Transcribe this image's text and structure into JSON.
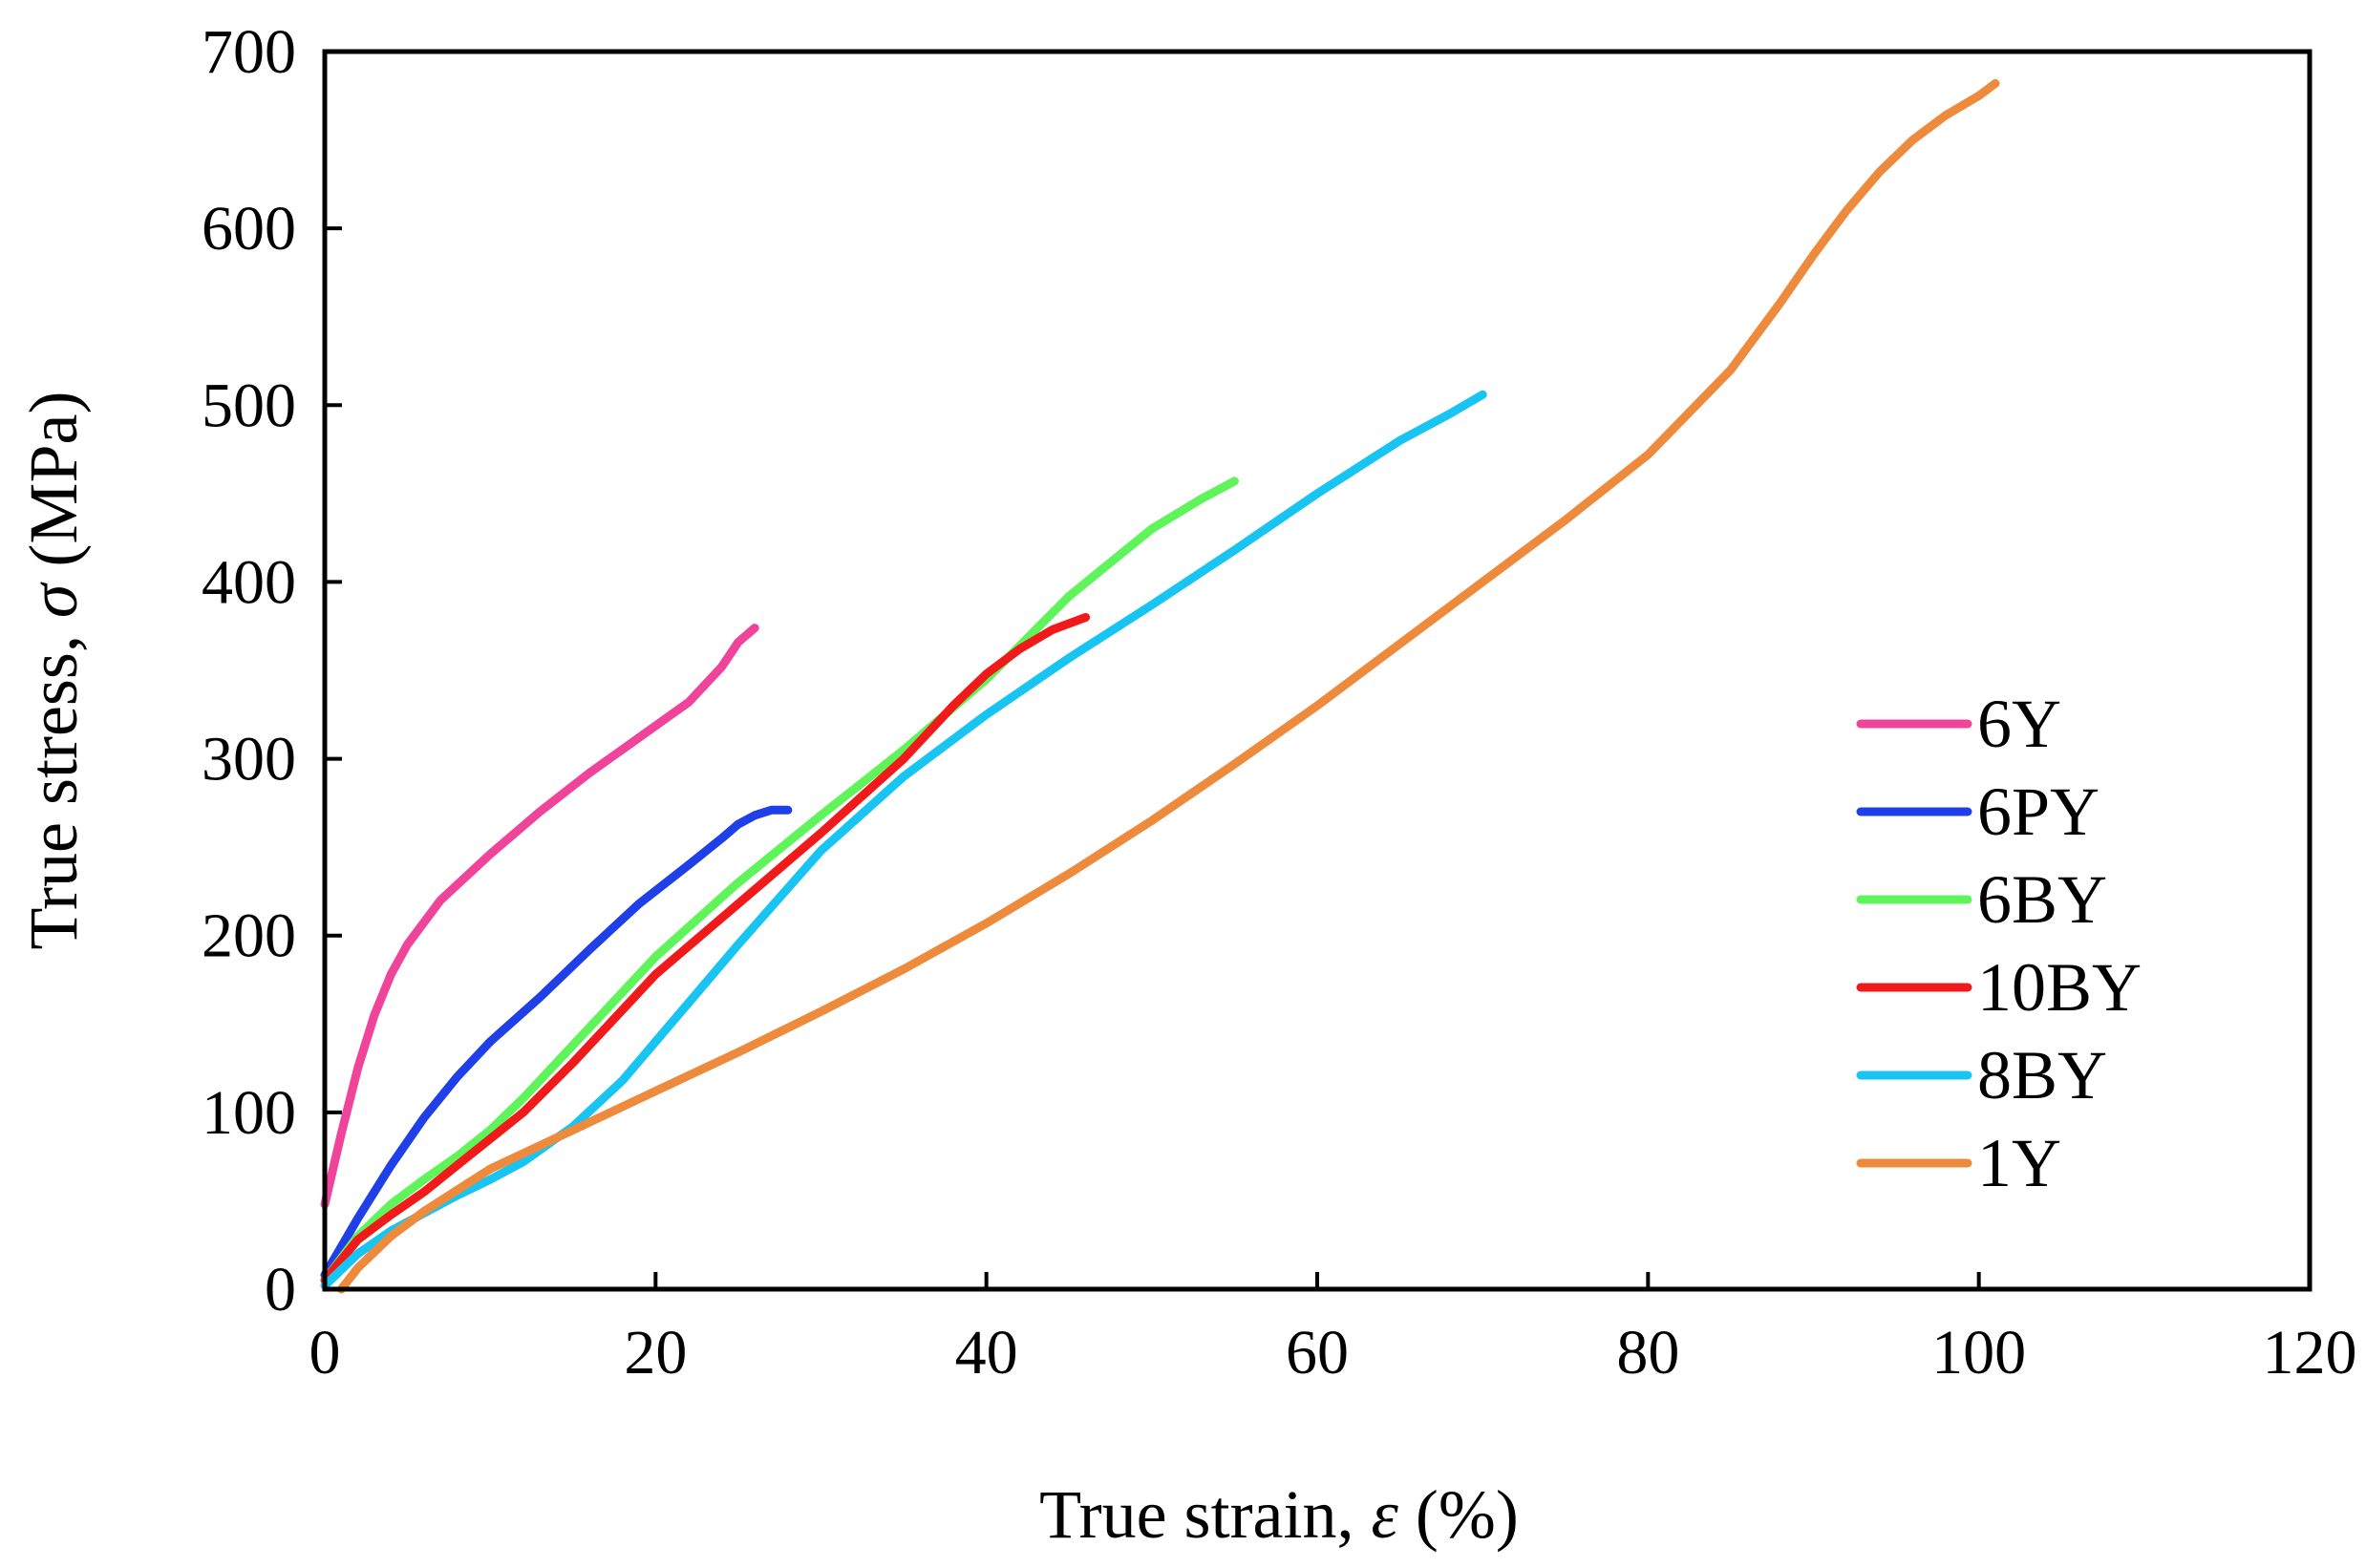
{
  "chart_data": {
    "type": "line",
    "title": "",
    "xlabel": {
      "prefix": "True strain, ",
      "symbol": "ε",
      "suffix": " (%)"
    },
    "ylabel": {
      "prefix": "True stress, ",
      "symbol": "σ",
      "suffix": " (MPa)"
    },
    "xlim": [
      0,
      120
    ],
    "ylim": [
      0,
      700
    ],
    "xticks": [
      0,
      20,
      40,
      60,
      80,
      100,
      120
    ],
    "yticks": [
      0,
      100,
      200,
      300,
      400,
      500,
      600,
      700
    ],
    "grid": false,
    "legend_position": "right",
    "series": [
      {
        "name": "6Y",
        "color": "#f0449b",
        "x": [
          0,
          1,
          2,
          3,
          4,
          5,
          7,
          10,
          13,
          16,
          19,
          22,
          24,
          25,
          26
        ],
        "y": [
          48,
          88,
          125,
          155,
          178,
          195,
          220,
          246,
          270,
          292,
          312,
          332,
          352,
          366,
          374
        ]
      },
      {
        "name": "6PY",
        "color": "#1f3fe8",
        "x": [
          0,
          2,
          4,
          6,
          8,
          10,
          13,
          16,
          19,
          22,
          24,
          25,
          26,
          27,
          28
        ],
        "y": [
          8,
          40,
          70,
          97,
          120,
          140,
          165,
          192,
          218,
          240,
          255,
          263,
          268,
          271,
          271
        ]
      },
      {
        "name": "6BY",
        "color": "#5ff55a",
        "x": [
          0,
          2,
          4,
          6,
          8,
          10,
          12,
          15,
          18,
          20,
          25,
          30,
          35,
          40,
          45,
          50,
          53,
          55
        ],
        "y": [
          5,
          30,
          48,
          62,
          75,
          90,
          108,
          138,
          168,
          188,
          230,
          268,
          305,
          345,
          392,
          430,
          447,
          457
        ]
      },
      {
        "name": "10BY",
        "color": "#f01a1a",
        "x": [
          0,
          2,
          4,
          6,
          8,
          10,
          12,
          15,
          18,
          20,
          25,
          30,
          35,
          38,
          40,
          42,
          44,
          46
        ],
        "y": [
          5,
          28,
          42,
          55,
          70,
          85,
          100,
          128,
          158,
          178,
          218,
          258,
          300,
          330,
          348,
          362,
          373,
          380
        ]
      },
      {
        "name": "8BY",
        "color": "#18c4f2",
        "x": [
          0,
          2,
          4,
          6,
          8,
          10,
          12,
          15,
          18,
          20,
          25,
          30,
          35,
          40,
          45,
          50,
          55,
          60,
          65,
          68,
          70
        ],
        "y": [
          2,
          20,
          33,
          43,
          53,
          62,
          72,
          92,
          118,
          140,
          195,
          248,
          290,
          325,
          357,
          387,
          418,
          450,
          480,
          495,
          506
        ]
      },
      {
        "name": "1Y",
        "color": "#ee8a3c",
        "x": [
          1,
          2,
          4,
          6,
          8,
          10,
          15,
          20,
          25,
          30,
          35,
          40,
          45,
          50,
          55,
          60,
          65,
          70,
          75,
          80,
          85,
          88,
          90,
          92,
          94,
          96,
          98,
          100,
          101
        ],
        "y": [
          0,
          12,
          30,
          44,
          56,
          68,
          90,
          112,
          134,
          157,
          181,
          207,
          235,
          265,
          297,
          330,
          365,
          400,
          435,
          472,
          520,
          558,
          585,
          610,
          632,
          650,
          664,
          675,
          682
        ]
      }
    ]
  }
}
